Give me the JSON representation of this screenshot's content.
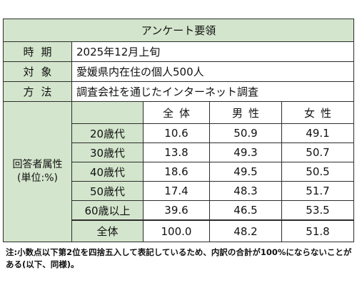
{
  "title": "アンケート要領",
  "info": [
    {
      "label": "時期",
      "value": "2025年12月上旬"
    },
    {
      "label": "対象",
      "value": "愛媛県内在住の個人500人"
    },
    {
      "label": "方法",
      "value": "調査会社を通じたインターネット調査"
    }
  ],
  "attr": {
    "label_line1": "回答者属性",
    "label_line2": "(単位:%)",
    "headers": {
      "all": "全体",
      "male": "男性",
      "female": "女性"
    },
    "rows": [
      {
        "age": "20歳代",
        "all": "10.6",
        "male": "50.9",
        "female": "49.1"
      },
      {
        "age": "30歳代",
        "all": "13.8",
        "male": "49.3",
        "female": "50.7"
      },
      {
        "age": "40歳代",
        "all": "18.6",
        "male": "49.5",
        "female": "50.5"
      },
      {
        "age": "50歳代",
        "all": "17.4",
        "male": "48.3",
        "female": "51.7"
      },
      {
        "age": "60歳以上",
        "all": "39.6",
        "male": "46.5",
        "female": "53.5"
      }
    ],
    "total": {
      "age": "全体",
      "all": "100.0",
      "male": "48.2",
      "female": "51.8"
    }
  },
  "note": "注:小数点以下第2位を四捨五入して表記しているため、内訳の合計が100%にならないことがある(以下、同様)。"
}
